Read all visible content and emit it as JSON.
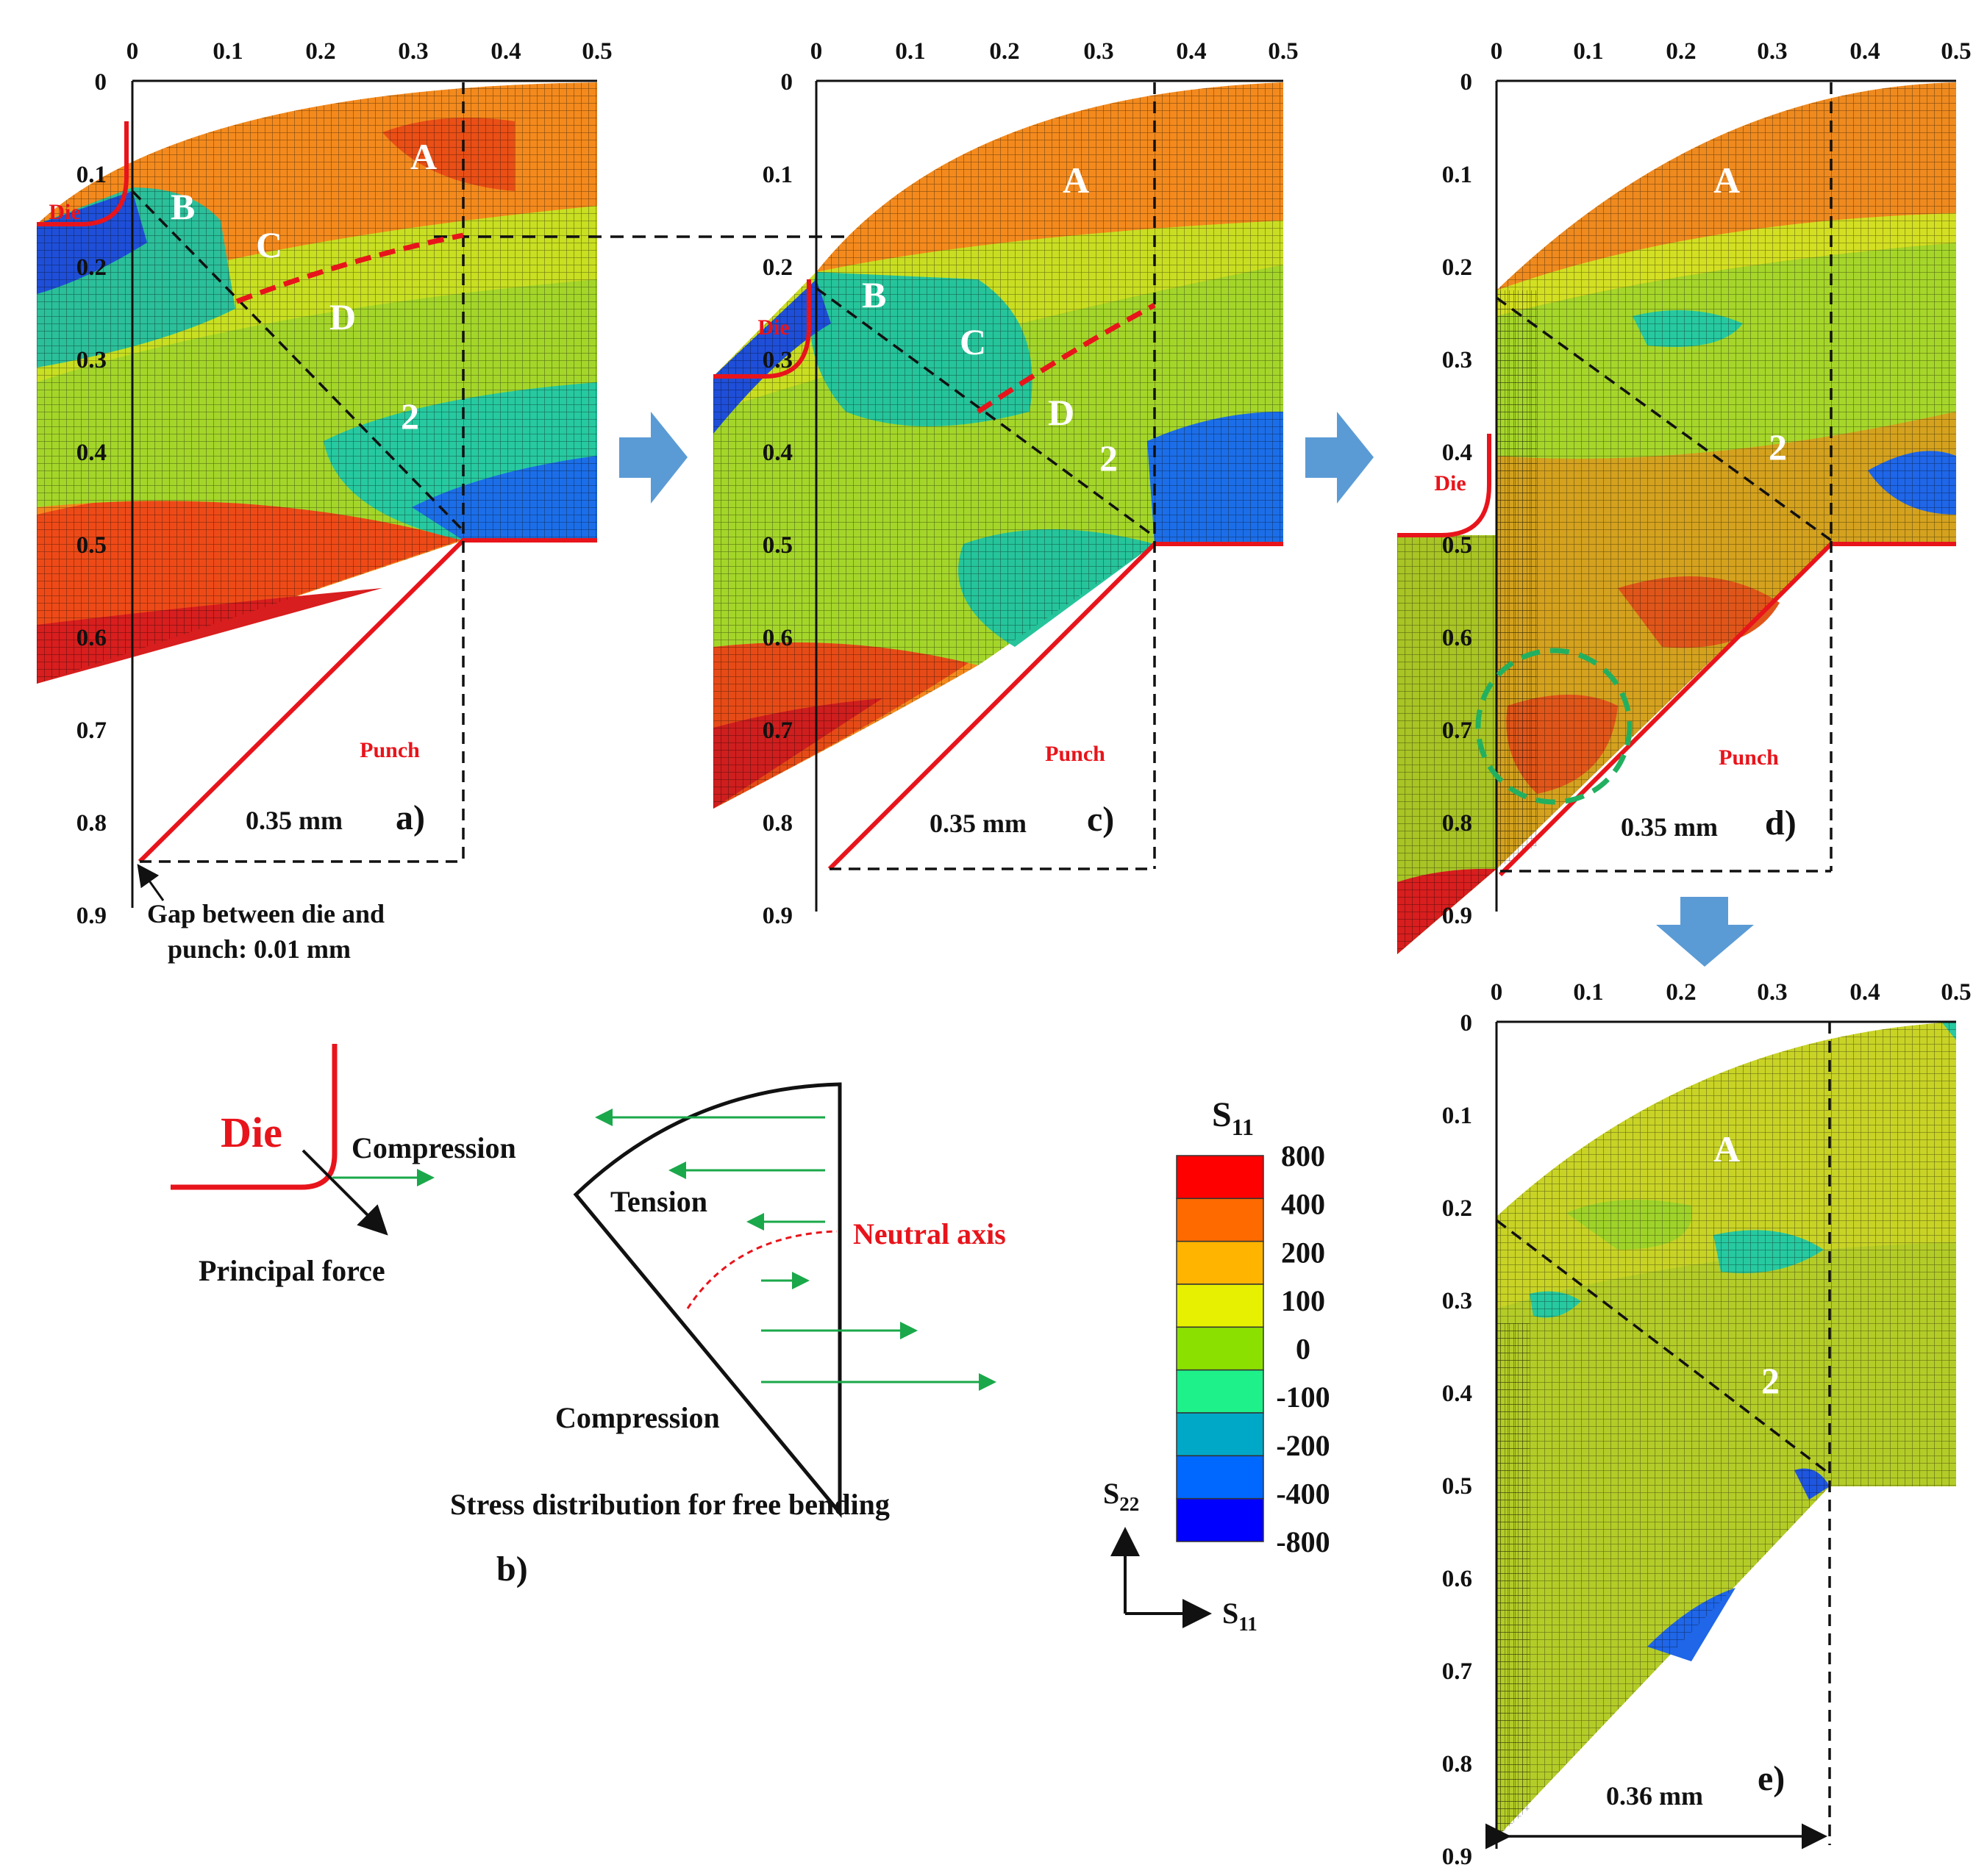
{
  "figure": {
    "axes": {
      "x_ticks": [
        "0",
        "0.1",
        "0.2",
        "0.3",
        "0.4",
        "0.5"
      ],
      "y_ticks": [
        "0",
        "0.1",
        "0.2",
        "0.3",
        "0.4",
        "0.5",
        "0.6",
        "0.7",
        "0.8",
        "0.9"
      ]
    },
    "panel_a": {
      "label": "a)",
      "die": "Die",
      "punch": "Punch",
      "width_label": "0.35 mm",
      "gap_line1": "Gap between die and",
      "gap_line2": "punch: 0.01 mm",
      "zones": [
        "A",
        "B",
        "C",
        "D",
        "2"
      ]
    },
    "panel_c": {
      "label": "c)",
      "die": "Die",
      "punch": "Punch",
      "width_label": "0.35 mm",
      "zones": [
        "A",
        "B",
        "C",
        "D",
        "2"
      ]
    },
    "panel_d": {
      "label": "d)",
      "die": "Die",
      "punch": "Punch",
      "width_label": "0.35 mm",
      "zones": [
        "A",
        "2"
      ]
    },
    "panel_e": {
      "label": "e)",
      "width_label": "0.36 mm",
      "zones": [
        "A",
        "2"
      ]
    },
    "panel_b": {
      "label": "b)",
      "die": "Die",
      "compression_top": "Compression",
      "principal_force": "Principal force",
      "tension": "Tension",
      "neutral_axis": "Neutral axis",
      "compression_bottom": "Compression",
      "caption": "Stress distribution for free bending"
    },
    "legend": {
      "title": "S11",
      "title_main": "S",
      "title_sub": "11",
      "levels": [
        "800",
        "400",
        "200",
        "100",
        "0",
        "-100",
        "-200",
        "-400",
        "-800"
      ],
      "colors": [
        "#ff0000",
        "#ff6a00",
        "#ffb400",
        "#e6f000",
        "#8ce000",
        "#1ef08a",
        "#00a8c8",
        "#0068ff",
        "#0000ff"
      ],
      "axis_y_main": "S",
      "axis_y_sub": "22",
      "axis_x_main": "S",
      "axis_x_sub": "11"
    },
    "colors": {
      "tool_red": "#e8141b",
      "arrow_blue": "#5b9bd5",
      "arrow_green": "#1aa84a",
      "circle_green": "#22b060"
    }
  }
}
